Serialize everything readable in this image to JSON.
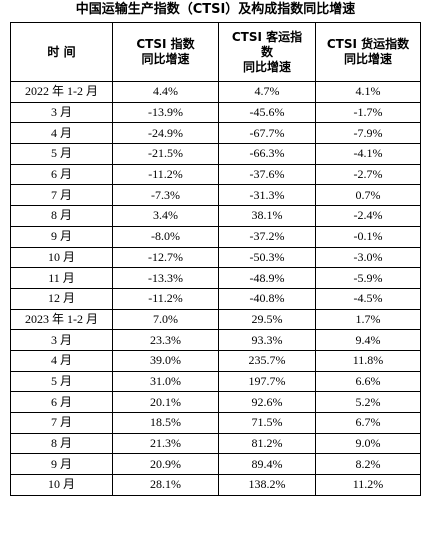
{
  "title": "中国运输生产指数（CTSI）及构成指数同比增速",
  "table": {
    "header": [
      [
        "时 间"
      ],
      [
        "CTSI 指数",
        "同比增速"
      ],
      [
        "CTSI 客运指",
        "数",
        "同比增速"
      ],
      [
        "CTSI 货运指数",
        "同比增速"
      ]
    ],
    "rows": [
      [
        "2022 年 1-2 月",
        "4.4%",
        "4.7%",
        "4.1%"
      ],
      [
        "3 月",
        "-13.9%",
        "-45.6%",
        "-1.7%"
      ],
      [
        "4 月",
        "-24.9%",
        "-67.7%",
        "-7.9%"
      ],
      [
        "5 月",
        "-21.5%",
        "-66.3%",
        "-4.1%"
      ],
      [
        "6 月",
        "-11.2%",
        "-37.6%",
        "-2.7%"
      ],
      [
        "7 月",
        "-7.3%",
        "-31.3%",
        "0.7%"
      ],
      [
        "8 月",
        "3.4%",
        "38.1%",
        "-2.4%"
      ],
      [
        "9 月",
        "-8.0%",
        "-37.2%",
        "-0.1%"
      ],
      [
        "10 月",
        "-12.7%",
        "-50.3%",
        "-3.0%"
      ],
      [
        "11 月",
        "-13.3%",
        "-48.9%",
        "-5.9%"
      ],
      [
        "12 月",
        "-11.2%",
        "-40.8%",
        "-4.5%"
      ],
      [
        "2023 年 1-2 月",
        "7.0%",
        "29.5%",
        "1.7%"
      ],
      [
        "3 月",
        "23.3%",
        "93.3%",
        "9.4%"
      ],
      [
        "4 月",
        "39.0%",
        "235.7%",
        "11.8%"
      ],
      [
        "5 月",
        "31.0%",
        "197.7%",
        "6.6%"
      ],
      [
        "6 月",
        "20.1%",
        "92.6%",
        "5.2%"
      ],
      [
        "7 月",
        "18.5%",
        "71.5%",
        "6.7%"
      ],
      [
        "8 月",
        "21.3%",
        "81.2%",
        "9.0%"
      ],
      [
        "9 月",
        "20.9%",
        "89.4%",
        "8.2%"
      ],
      [
        "10 月",
        "28.1%",
        "138.2%",
        "11.2%"
      ]
    ]
  }
}
